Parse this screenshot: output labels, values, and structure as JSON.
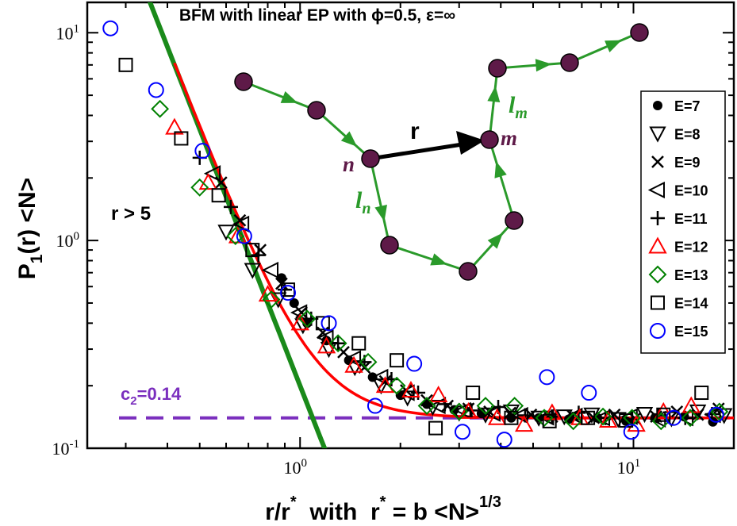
{
  "chart_data": {
    "type": "scatter",
    "title": "BFM with linear EP with ϕ=0.5, ε=∞",
    "xlabel": {
      "main": "r/r",
      "sup1": "*",
      "mid": "  with  r",
      "sup2": "*",
      "tail": " = b <N>",
      "sup3": "1/3"
    },
    "ylabel": {
      "main": "P",
      "sub": "1",
      "tail": "(r) <N>"
    },
    "x_scale": "log",
    "y_scale": "log",
    "xlim": [
      0.23,
      20
    ],
    "ylim": [
      0.1,
      14
    ],
    "grid": false,
    "legend_position": "right",
    "x_ticks": [
      {
        "value": 1,
        "base": "10",
        "exp": "0"
      },
      {
        "value": 10,
        "base": "10",
        "exp": "1"
      }
    ],
    "y_ticks": [
      {
        "value": 0.1,
        "base": "10",
        "exp": "-1"
      },
      {
        "value": 1,
        "base": "10",
        "exp": "0"
      },
      {
        "value": 10,
        "base": "10",
        "exp": "1"
      }
    ],
    "series": [
      {
        "name": "E=7",
        "marker": "filled-circle",
        "color": "#000000",
        "x": [
          0.88,
          0.96,
          1.05,
          1.2,
          1.4,
          1.65,
          2.0,
          2.4,
          2.9,
          3.5,
          4.3,
          5.2,
          6.4,
          7.8,
          9.5,
          11.6,
          14.2,
          17.3
        ],
        "y": [
          0.66,
          0.5,
          0.4,
          0.33,
          0.265,
          0.22,
          0.18,
          0.163,
          0.153,
          0.147,
          0.14,
          0.14,
          0.138,
          0.14,
          0.135,
          0.14,
          0.142,
          0.134
        ]
      },
      {
        "name": "E=8",
        "marker": "triangle-down",
        "color": "#000000",
        "x": [
          0.6,
          0.72,
          0.86,
          1.02,
          1.22,
          1.46,
          1.75,
          2.1,
          2.5,
          3.0,
          3.6,
          4.3,
          5.2,
          6.2,
          7.5,
          9.0,
          10.8,
          13.0,
          15.6,
          18.7
        ],
        "y": [
          1.1,
          0.72,
          0.52,
          0.39,
          0.3,
          0.245,
          0.2,
          0.175,
          0.158,
          0.148,
          0.145,
          0.15,
          0.14,
          0.142,
          0.145,
          0.138,
          0.146,
          0.139,
          0.15,
          0.144
        ]
      },
      {
        "name": "E=9",
        "marker": "cross",
        "color": "#000000",
        "x": [
          0.58,
          0.66,
          0.76,
          0.88,
          1.01,
          1.17,
          1.35,
          1.56,
          1.8,
          2.08,
          2.4,
          2.77,
          3.2,
          3.7,
          4.27,
          4.93,
          5.7,
          6.58,
          7.6,
          8.77,
          10.1,
          11.7,
          13.5,
          15.6,
          18.0
        ],
        "y": [
          1.9,
          1.25,
          0.9,
          0.62,
          0.45,
          0.36,
          0.29,
          0.245,
          0.21,
          0.19,
          0.17,
          0.16,
          0.155,
          0.15,
          0.148,
          0.145,
          0.142,
          0.143,
          0.14,
          0.145,
          0.139,
          0.142,
          0.15,
          0.145,
          0.155
        ]
      },
      {
        "name": "E=10",
        "marker": "triangle-left",
        "color": "#000000",
        "x": [
          0.55,
          0.67,
          0.82,
          1.0,
          1.2,
          1.45,
          1.75,
          2.1,
          2.6,
          3.1,
          3.8,
          4.6,
          5.5,
          6.7,
          8.1,
          9.8,
          11.9,
          14.4,
          17.4
        ],
        "y": [
          2.1,
          1.2,
          0.72,
          0.45,
          0.34,
          0.27,
          0.22,
          0.185,
          0.16,
          0.152,
          0.147,
          0.144,
          0.141,
          0.143,
          0.14,
          0.142,
          0.138,
          0.14,
          0.145
        ]
      },
      {
        "name": "E=11",
        "marker": "plus",
        "color": "#000000",
        "x": [
          0.5,
          0.62,
          0.75,
          0.9,
          1.08,
          1.3,
          1.56,
          1.88,
          2.26,
          2.72,
          3.27,
          3.93,
          4.73,
          5.69,
          6.85,
          8.24,
          9.91,
          11.9,
          14.3,
          17.2
        ],
        "y": [
          2.5,
          1.45,
          0.85,
          0.58,
          0.42,
          0.32,
          0.26,
          0.215,
          0.185,
          0.163,
          0.152,
          0.158,
          0.144,
          0.142,
          0.148,
          0.14,
          0.138,
          0.144,
          0.14,
          0.146
        ]
      },
      {
        "name": "E=12",
        "marker": "triangle-up-open",
        "color": "#ff0000",
        "x": [
          0.42,
          0.53,
          0.65,
          0.8,
          1.0,
          1.2,
          1.45,
          1.8,
          2.15,
          2.6,
          3.2,
          3.9,
          4.7,
          5.7,
          6.9,
          8.4,
          10.2,
          12.3,
          14.9
        ],
        "y": [
          3.5,
          1.9,
          1.05,
          0.55,
          0.4,
          0.31,
          0.25,
          0.2,
          0.19,
          0.18,
          0.15,
          0.14,
          0.13,
          0.148,
          0.14,
          0.136,
          0.13,
          0.15,
          0.16
        ]
      },
      {
        "name": "E=13",
        "marker": "diamond-open",
        "color": "#008000",
        "x": [
          0.38,
          0.5,
          0.64,
          0.82,
          1.05,
          1.3,
          1.6,
          1.95,
          2.4,
          3.0,
          3.6,
          4.4,
          5.4,
          6.6,
          8.1,
          9.9,
          12.1,
          14.8,
          18.1
        ],
        "y": [
          4.3,
          1.8,
          1.05,
          0.52,
          0.42,
          0.32,
          0.26,
          0.2,
          0.16,
          0.15,
          0.16,
          0.16,
          0.14,
          0.135,
          0.142,
          0.14,
          0.135,
          0.14,
          0.15
        ]
      },
      {
        "name": "E=14",
        "marker": "square-open",
        "color": "#000000",
        "x": [
          0.3,
          0.44,
          0.57,
          0.72,
          0.92,
          1.17,
          1.5,
          1.95,
          2.55,
          3.3,
          4.3,
          5.6,
          7.3,
          9.5,
          12.3,
          16.0
        ],
        "y": [
          7.0,
          3.1,
          1.65,
          0.9,
          0.58,
          0.4,
          0.32,
          0.265,
          0.125,
          0.185,
          0.14,
          0.135,
          0.14,
          0.136,
          0.145,
          0.185
        ]
      },
      {
        "name": "E=15",
        "marker": "circle-open",
        "color": "#0000ff",
        "x": [
          0.27,
          0.37,
          0.51,
          0.68,
          0.92,
          1.22,
          1.68,
          2.2,
          3.07,
          4.1,
          5.5,
          7.35,
          9.85,
          13.2,
          17.7
        ],
        "y": [
          10.5,
          5.3,
          2.7,
          1.05,
          0.56,
          0.4,
          0.16,
          0.255,
          0.12,
          0.11,
          0.22,
          0.185,
          0.12,
          0.14,
          0.145
        ]
      }
    ],
    "fit_curves": [
      {
        "color": "#ff0000",
        "x_range": [
          0.42,
          20
        ],
        "description": "0.14 + 0.2*x^-4.1"
      },
      {
        "color": "#1a8a1a",
        "x_range": [
          0.24,
          1.33
        ],
        "description": "0.2*x^-4.1"
      }
    ],
    "reference_line": {
      "y": 0.14,
      "label": {
        "main": "c",
        "sub": "2",
        "tail": "=0.14"
      },
      "color": "#7b2fbe",
      "style": "dashed"
    },
    "annotation": "r > 5",
    "inset": {
      "description": "chain schematic",
      "label_r": "r",
      "label_n": "n",
      "label_m": "m",
      "label_ln": {
        "base": "l",
        "sub": "n"
      },
      "label_lm": {
        "base": "l",
        "sub": "m"
      },
      "bead_color": "#5e1a48",
      "arrow_color": "#2a9a2a"
    }
  }
}
